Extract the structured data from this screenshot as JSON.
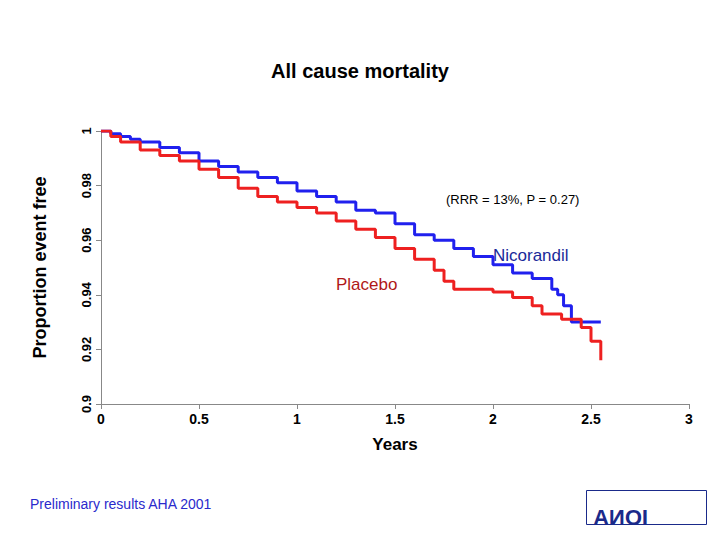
{
  "chart_data": {
    "type": "line",
    "title": "All cause mortality",
    "x_label": "Years",
    "y_label": "Proportion event free",
    "annotations": [
      "(RRR = 13%, P = 0.27)",
      "Preliminary results AHA 2001",
      "IONA"
    ],
    "xlim": [
      0,
      3
    ],
    "xticks": [
      0,
      0.5,
      1,
      1.5,
      2,
      2.5,
      3
    ],
    "ylim": [
      0.9,
      1
    ],
    "yticks": [
      0.9,
      0.92,
      0.94,
      0.96,
      0.98,
      1
    ],
    "grid": false,
    "line_style": "step",
    "marker": "none",
    "series": [
      {
        "name": "Nicorandil",
        "color": "#2020ee",
        "x": [
          0,
          0.05,
          0.1,
          0.15,
          0.2,
          0.3,
          0.4,
          0.5,
          0.6,
          0.7,
          0.8,
          0.9,
          1.0,
          1.1,
          1.2,
          1.3,
          1.4,
          1.5,
          1.6,
          1.7,
          1.8,
          1.9,
          2.0,
          2.1,
          2.2,
          2.3,
          2.33,
          2.36,
          2.4,
          2.55
        ],
        "values": [
          1,
          0.999,
          0.998,
          0.997,
          0.996,
          0.994,
          0.992,
          0.989,
          0.987,
          0.985,
          0.983,
          0.981,
          0.978,
          0.976,
          0.974,
          0.971,
          0.97,
          0.966,
          0.962,
          0.96,
          0.957,
          0.954,
          0.951,
          0.948,
          0.946,
          0.942,
          0.94,
          0.936,
          0.93,
          0.93
        ]
      },
      {
        "name": "Placebo",
        "color": "#ee2020",
        "x": [
          0,
          0.05,
          0.1,
          0.2,
          0.3,
          0.4,
          0.5,
          0.6,
          0.7,
          0.8,
          0.9,
          1.0,
          1.1,
          1.2,
          1.3,
          1.4,
          1.5,
          1.6,
          1.7,
          1.75,
          1.8,
          1.9,
          2.0,
          2.1,
          2.2,
          2.25,
          2.35,
          2.4,
          2.45,
          2.5,
          2.55
        ],
        "values": [
          1,
          0.998,
          0.996,
          0.993,
          0.991,
          0.989,
          0.986,
          0.983,
          0.979,
          0.976,
          0.974,
          0.972,
          0.97,
          0.967,
          0.964,
          0.961,
          0.957,
          0.953,
          0.949,
          0.945,
          0.942,
          0.942,
          0.941,
          0.939,
          0.936,
          0.933,
          0.931,
          0.931,
          0.928,
          0.923,
          0.916
        ]
      }
    ]
  }
}
